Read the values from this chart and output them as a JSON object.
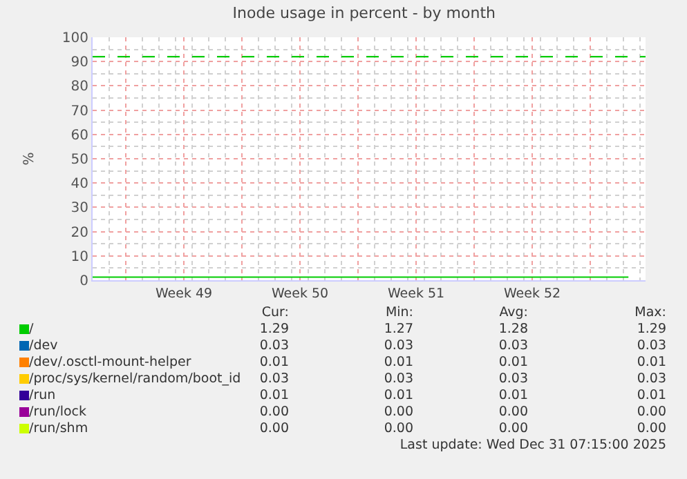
{
  "chart_data": {
    "type": "line",
    "title": "Inode usage in percent - by month",
    "ylabel": "%",
    "x": [
      "2025-11-29T00:00",
      "2025-12-15T00:00",
      "2025-12-31T07:15"
    ],
    "series": [
      {
        "name": "/",
        "color": "#00cc00",
        "values": [
          1.3,
          1.3,
          1.3
        ]
      },
      {
        "name": "/dev",
        "color": "#0066b3",
        "values": [
          null,
          null,
          null
        ]
      },
      {
        "name": "/dev/.osctl-mount-helper",
        "color": "#ff8000",
        "values": [
          null,
          null,
          null
        ]
      },
      {
        "name": "/proc/sys/kernel/random/boot_id",
        "color": "#ffcc00",
        "values": [
          null,
          null,
          null
        ]
      },
      {
        "name": "/run",
        "color": "#330099",
        "values": [
          null,
          null,
          null
        ]
      },
      {
        "name": "/run/lock",
        "color": "#990099",
        "values": [
          null,
          null,
          null
        ]
      },
      {
        "name": "/run/shm",
        "color": "#ccff00",
        "values": [
          null,
          null,
          null
        ]
      }
    ],
    "xlim": [
      "2025-11-29T00:00",
      "2026-01-01T08:00"
    ],
    "xticks": [
      {
        "value": "2025-12-01T00:00",
        "label": null
      },
      {
        "value": "2025-12-04T12:00",
        "label": "Week 49"
      },
      {
        "value": "2025-12-08T00:00",
        "label": null
      },
      {
        "value": "2025-12-11T12:00",
        "label": "Week 50"
      },
      {
        "value": "2025-12-15T00:00",
        "label": null
      },
      {
        "value": "2025-12-18T12:00",
        "label": "Week 51"
      },
      {
        "value": "2025-12-22T00:00",
        "label": null
      },
      {
        "value": "2025-12-25T12:00",
        "label": "Week 52"
      },
      {
        "value": "2025-12-29T00:00",
        "label": null
      }
    ],
    "ylim": [
      0,
      100
    ],
    "yticks": [
      0,
      10,
      20,
      30,
      40,
      50,
      60,
      70,
      80,
      90,
      100
    ],
    "grid": true,
    "legend": "bottom",
    "marker": "none",
    "line_style": "solid",
    "ref_lines": [
      {
        "axis": "y",
        "value": 92,
        "color": "#00cc00",
        "line_style": "dashed"
      }
    ],
    "annotations": [
      "Cur:",
      "Min:",
      "Avg:",
      "Max:",
      "1.29",
      "1.27",
      "1.28",
      "1.29",
      "0.03",
      "0.03",
      "0.03",
      "0.03",
      "0.01",
      "0.01",
      "0.01",
      "0.01",
      "0.03",
      "0.03",
      "0.03",
      "0.03",
      "0.01",
      "0.01",
      "0.01",
      "0.01",
      "0.00",
      "0.00",
      "0.00",
      "0.00",
      "0.00",
      "0.00",
      "0.00",
      "0.00",
      "Last update: Wed Dec 31 07:15:00 2025"
    ]
  }
}
